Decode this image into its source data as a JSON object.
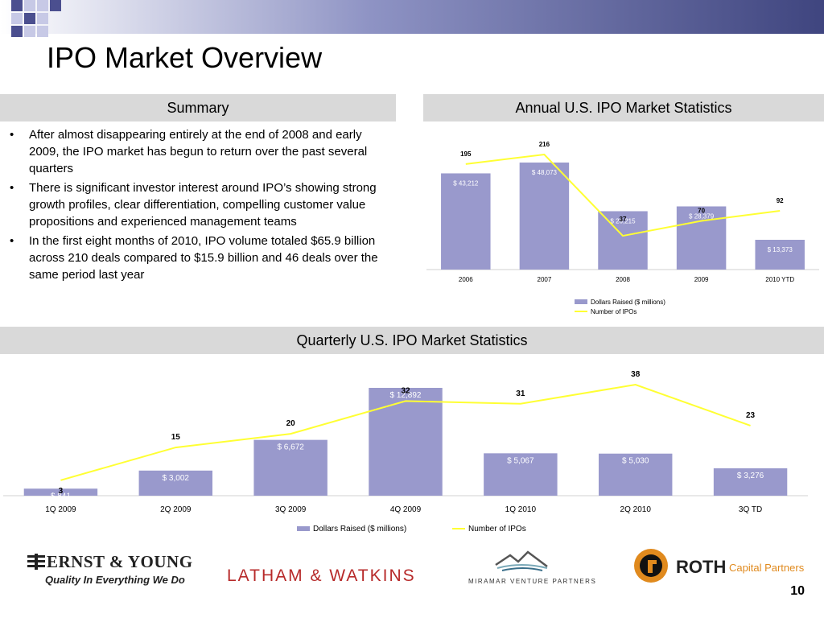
{
  "title": "IPO Market Overview",
  "summary": {
    "header": "Summary",
    "bullets": [
      "After almost disappearing entirely at the end of 2008 and early 2009, the IPO market has begun to return over the past several quarters",
      "There is significant investor interest around IPO’s showing strong growth profiles, clear differentiation, compelling customer value propositions and experienced management teams",
      "In the first eight months of 2010, IPO volume totaled $65.9 billion across 210 deals compared to $15.9 billion and 46 deals over the same period last year"
    ],
    "bullet_glyph": "•"
  },
  "annual_header": "Annual U.S. IPO Market Statistics",
  "quarterly_header": "Quarterly U.S. IPO Market Statistics",
  "colors": {
    "bar": "#9999cc",
    "line": "#ffff33",
    "header_bg": "#d9d9d9",
    "bar_label": "#ffffff"
  },
  "chart_data": [
    {
      "type": "bar",
      "categories": [
        "2006",
        "2007",
        "2008",
        "2009",
        "2010 YTD"
      ],
      "series": [
        {
          "name": "Dollars Raised ($ millions)",
          "values": [
            43212,
            48073,
            26215,
            28379,
            13373
          ],
          "labels": [
            "$ 43,212",
            "$ 48,073",
            "$ 26,215",
            "$ 28,379",
            "$ 13,373"
          ]
        },
        {
          "name": "Number of IPOs",
          "type": "line",
          "values": [
            195,
            216,
            37,
            70,
            92
          ],
          "labels": [
            "195",
            "216",
            "37",
            "70",
            "92"
          ]
        }
      ],
      "legend": "bottom"
    },
    {
      "type": "bar",
      "categories": [
        "1Q 2009",
        "2Q 2009",
        "3Q 2009",
        "4Q 2009",
        "1Q 2010",
        "2Q 2010",
        "3Q TD"
      ],
      "series": [
        {
          "name": "Dollars Raised ($ millions)",
          "values": [
            841,
            3002,
            6672,
            12892,
            5067,
            5030,
            3276
          ],
          "labels": [
            "$ 841",
            "$ 3,002",
            "$ 6,672",
            "$ 12,892",
            "$ 5,067",
            "$ 5,030",
            "$ 3,276"
          ]
        },
        {
          "name": "Number of IPOs",
          "type": "line",
          "values": [
            3,
            15,
            20,
            32,
            31,
            38,
            23
          ],
          "labels": [
            "3",
            "15",
            "20",
            "32",
            "31",
            "38",
            "23"
          ]
        }
      ],
      "legend": "bottom"
    }
  ],
  "logos": {
    "ey_name": "ERNST & YOUNG",
    "ey_tagline": "Quality In Everything We Do",
    "latham": "LATHAM & WATKINS",
    "miramar": "MIRAMAR VENTURE PARTNERS",
    "roth_name": "ROTH",
    "roth_sub": "Capital Partners"
  },
  "page_number": "10"
}
